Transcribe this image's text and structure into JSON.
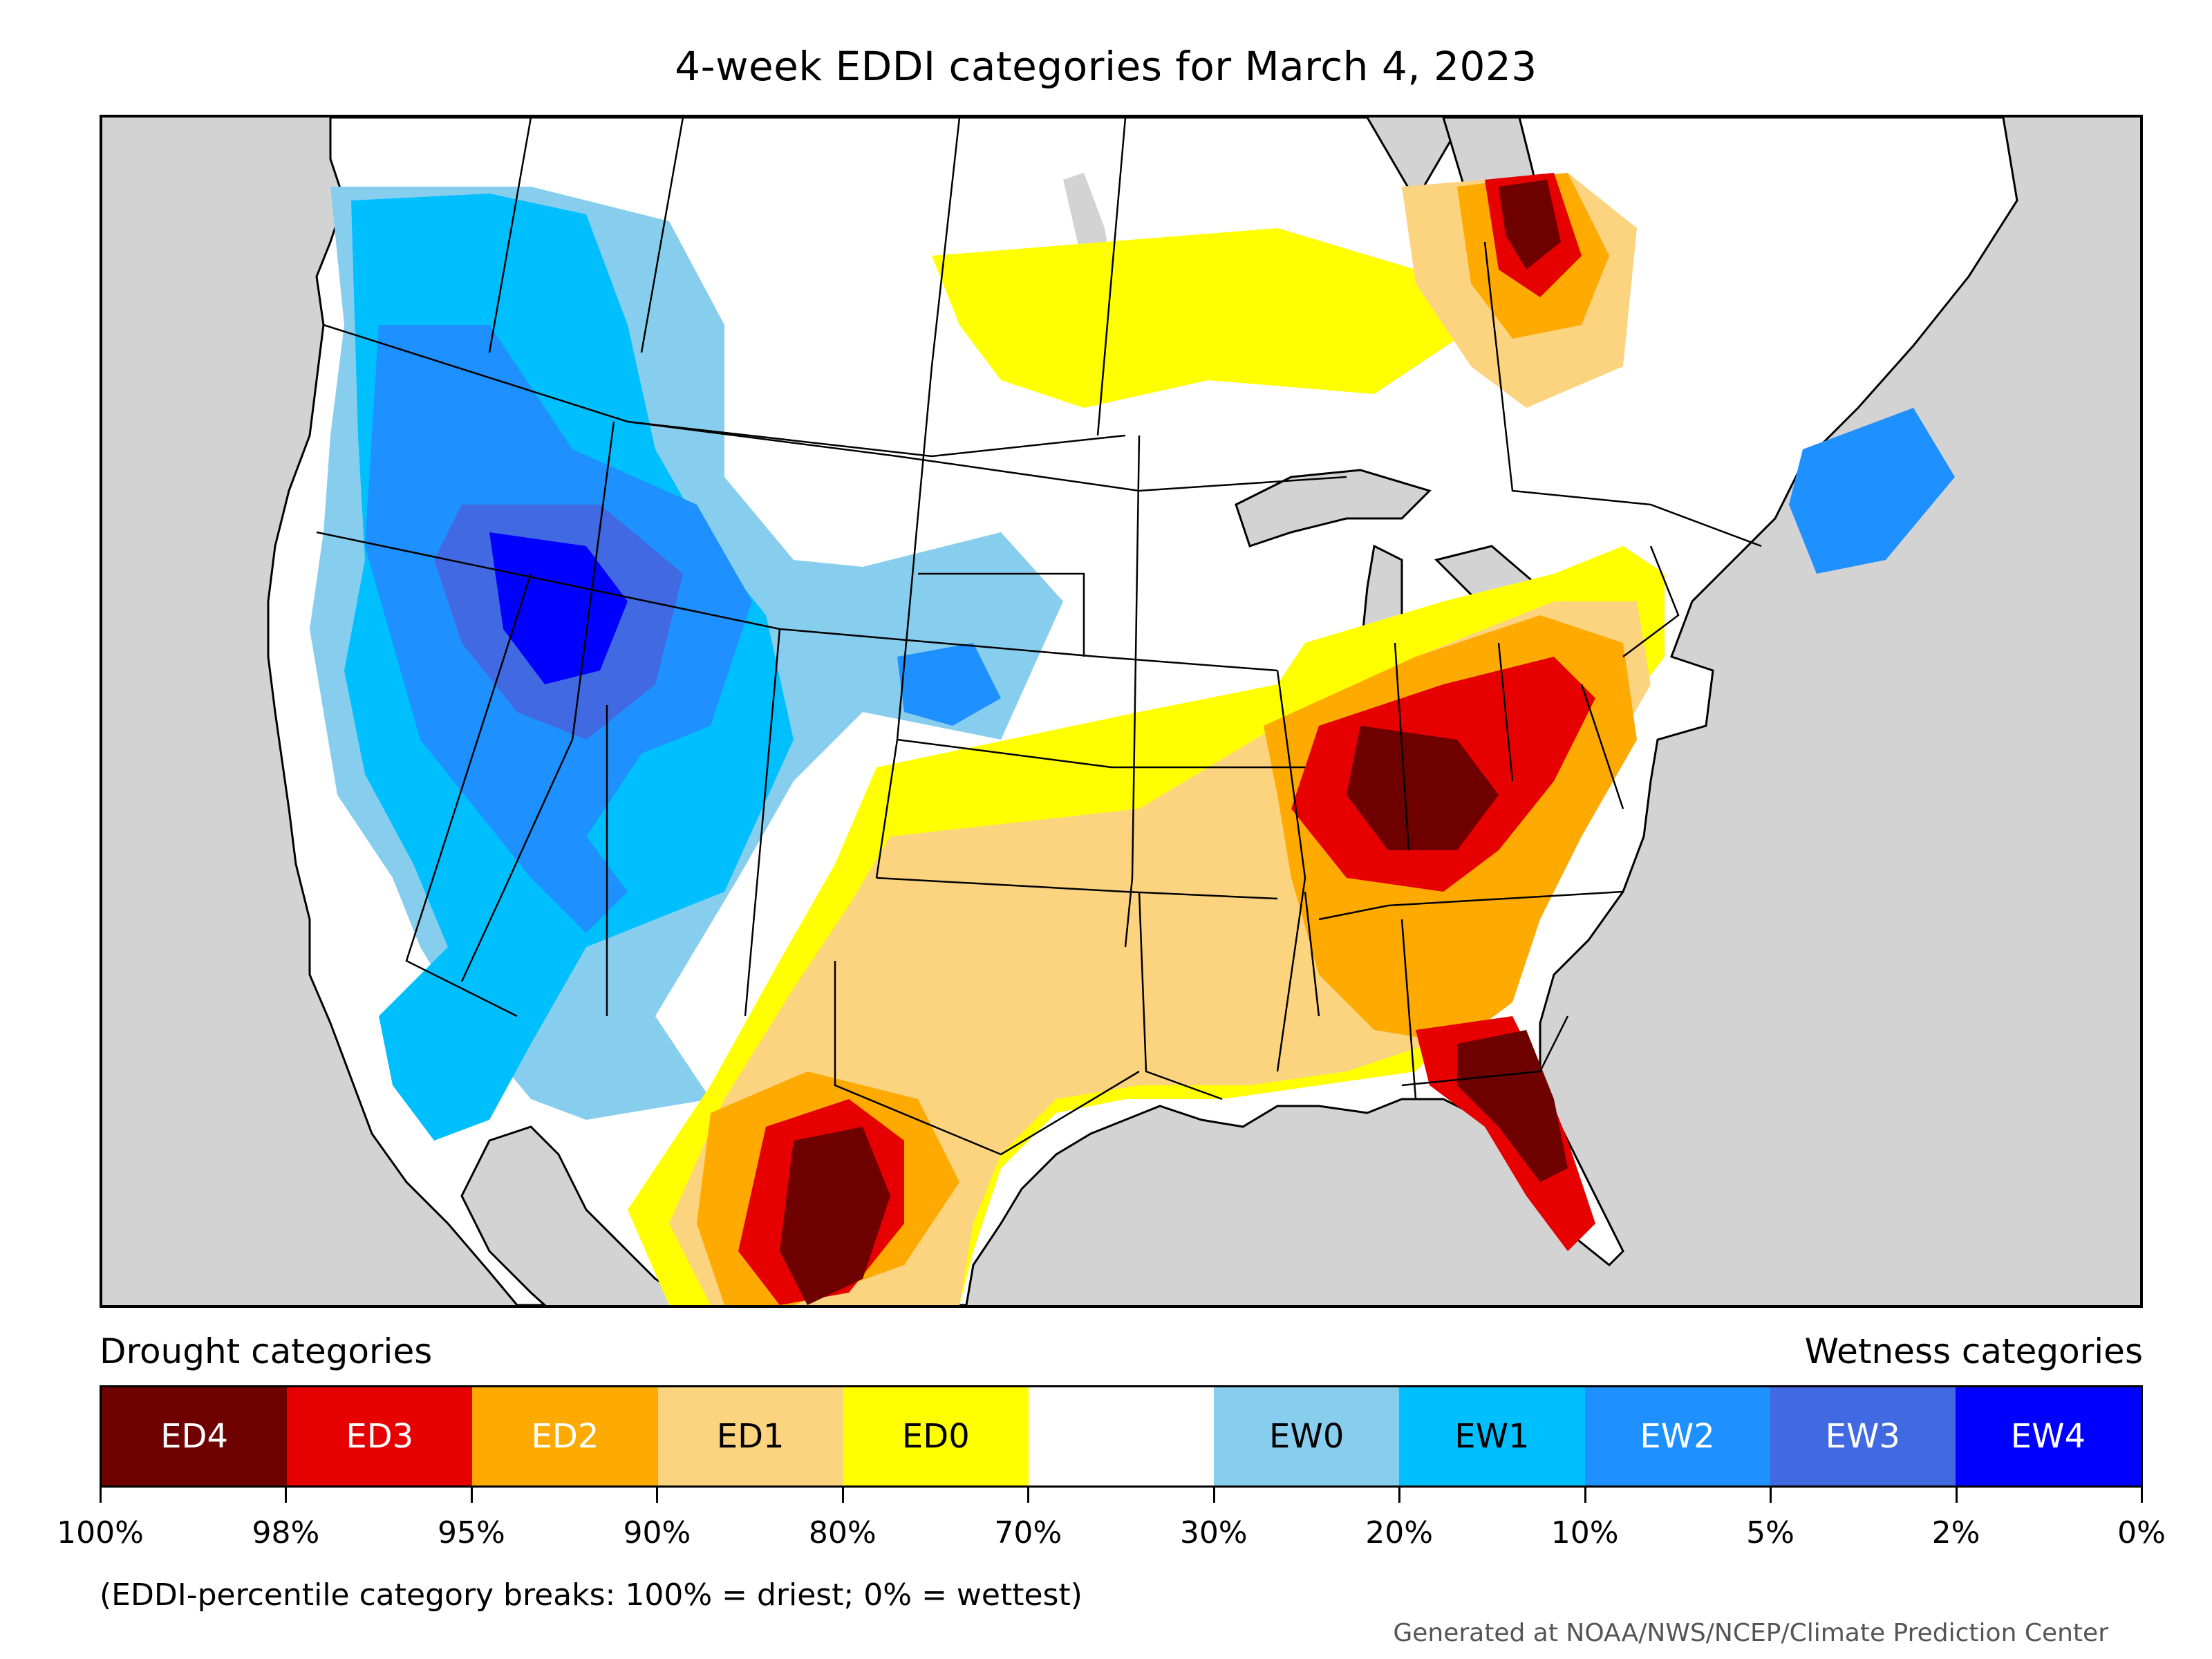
{
  "title": "4-week EDDI categories for March 4, 2023",
  "legend": {
    "drought_label": "Drought categories",
    "wetness_label": "Wetness categories",
    "categories": [
      {
        "label": "ED4",
        "color": "#6e0000",
        "text_color": "#ffffff"
      },
      {
        "label": "ED3",
        "color": "#e60000",
        "text_color": "#ffffff"
      },
      {
        "label": "ED2",
        "color": "#ffaa00",
        "text_color": "#ffffff"
      },
      {
        "label": "ED1",
        "color": "#fcd37f",
        "text_color": "#000000"
      },
      {
        "label": "ED0",
        "color": "#ffff00",
        "text_color": "#000000"
      },
      {
        "label": "",
        "color": "#ffffff",
        "text_color": "#000000"
      },
      {
        "label": "EW0",
        "color": "#87ceee",
        "text_color": "#000000"
      },
      {
        "label": "EW1",
        "color": "#00bfff",
        "text_color": "#000000"
      },
      {
        "label": "EW2",
        "color": "#1e90ff",
        "text_color": "#ffffff"
      },
      {
        "label": "EW3",
        "color": "#4169e1",
        "text_color": "#ffffff"
      },
      {
        "label": "EW4",
        "color": "#0000ff",
        "text_color": "#ffffff"
      }
    ],
    "ticks": [
      "100%",
      "98%",
      "95%",
      "90%",
      "80%",
      "70%",
      "30%",
      "20%",
      "10%",
      "5%",
      "2%",
      "0%"
    ]
  },
  "note": "(EDDI-percentile category breaks: 100% = driest; 0% = wettest)",
  "credit": "Generated at NOAA/NWS/NCEP/Climate Prediction Center",
  "map_colors": {
    "background": "#d3d3d3",
    "land": "#ffffff",
    "water": "#d3d3d3",
    "border": "#000000"
  }
}
